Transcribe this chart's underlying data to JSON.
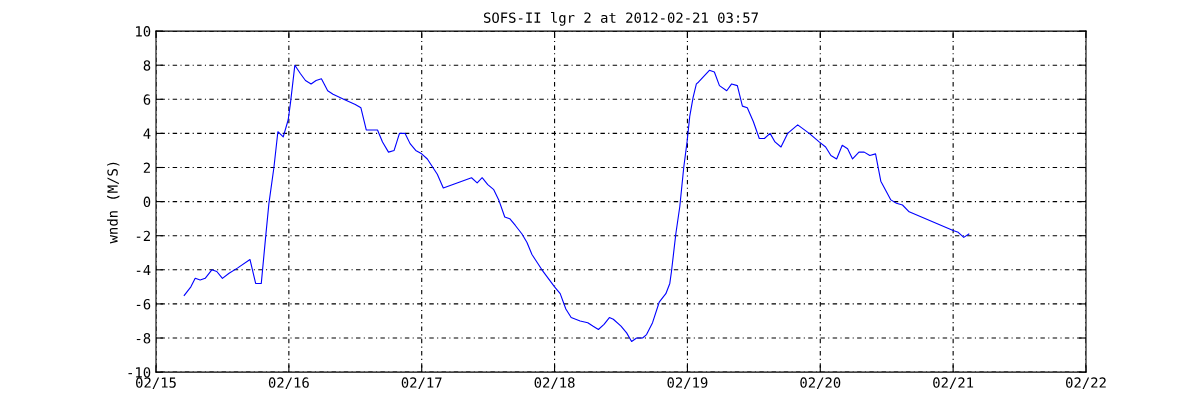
{
  "chart_data": {
    "type": "line",
    "title": "SOFS-II lgr 2 at 2012-02-21 03:57",
    "ylabel": "wndn (M/S)",
    "x": [
      "2012-02-15T05:06",
      "2012-02-15T06:18",
      "2012-02-15T07:05",
      "2012-02-15T07:59",
      "2012-02-15T08:53",
      "2012-02-15T10:05",
      "2012-02-15T10:59",
      "2012-02-15T12:00",
      "2012-02-15T13:12",
      "2012-02-15T14:42",
      "2012-02-15T16:59",
      "2012-02-15T18:00",
      "2012-02-15T19:01",
      "2012-02-15T19:48",
      "2012-02-15T20:24",
      "2012-02-15T21:18",
      "2012-02-15T22:01",
      "2012-02-15T22:59",
      "2012-02-15T23:53",
      "2012-02-16T00:18",
      "2012-02-16T01:05",
      "2012-02-16T02:06",
      "2012-02-16T03:00",
      "2012-02-16T04:01",
      "2012-02-16T04:55",
      "2012-02-16T05:53",
      "2012-02-16T07:01",
      "2012-02-16T07:59",
      "2012-02-16T09:54",
      "2012-02-16T12:00",
      "2012-02-16T13:01",
      "2012-02-16T13:59",
      "2012-02-16T16:01",
      "2012-02-16T16:55",
      "2012-02-16T18:00",
      "2012-02-16T19:01",
      "2012-02-16T19:59",
      "2012-02-16T21:00",
      "2012-02-16T21:54",
      "2012-02-16T22:55",
      "2012-02-17T00:00",
      "2012-02-17T01:01",
      "2012-02-17T02:49",
      "2012-02-17T03:54",
      "2012-02-17T09:00",
      "2012-02-17T10:01",
      "2012-02-17T10:55",
      "2012-02-17T11:56",
      "2012-02-17T13:01",
      "2012-02-17T13:55",
      "2012-02-17T15:00",
      "2012-02-17T15:54",
      "2012-02-17T16:55",
      "2012-02-17T18:07",
      "2012-02-17T19:01",
      "2012-02-17T19:55",
      "2012-02-17T21:43",
      "2012-02-18T00:00",
      "2012-02-18T01:01",
      "2012-02-18T02:02",
      "2012-02-18T03:00",
      "2012-02-18T04:37",
      "2012-02-18T06:00",
      "2012-02-18T06:54",
      "2012-02-18T07:55",
      "2012-02-18T08:56",
      "2012-02-18T09:54",
      "2012-02-18T10:37",
      "2012-02-18T12:00",
      "2012-02-18T13:01",
      "2012-02-18T13:55",
      "2012-02-18T14:49",
      "2012-02-18T15:54",
      "2012-02-18T16:37",
      "2012-02-18T17:42",
      "2012-02-18T18:54",
      "2012-02-18T20:06",
      "2012-02-18T20:49",
      "2012-02-18T21:07",
      "2012-02-18T21:54",
      "2012-02-18T22:37",
      "2012-02-18T23:20",
      "2012-02-18T23:56",
      "2012-02-19T00:25",
      "2012-02-19T01:01",
      "2012-02-19T01:37",
      "2012-02-19T01:59",
      "2012-02-19T03:58",
      "2012-02-19T04:52",
      "2012-02-19T05:47",
      "2012-02-19T07:06",
      "2012-02-19T07:59",
      "2012-02-19T09:01",
      "2012-02-19T09:56",
      "2012-02-19T10:49",
      "2012-02-19T11:54",
      "2012-02-19T12:59",
      "2012-02-19T13:54",
      "2012-02-19T14:56",
      "2012-02-19T15:49",
      "2012-02-19T16:54",
      "2012-02-19T18:06",
      "2012-02-19T19:55",
      "2012-02-19T22:00",
      "2012-02-19T23:48",
      "2012-02-20T00:58",
      "2012-02-20T01:55",
      "2012-02-20T02:57",
      "2012-02-20T03:58",
      "2012-02-20T04:56",
      "2012-02-20T05:50",
      "2012-02-20T06:59",
      "2012-02-20T07:56",
      "2012-02-20T08:57",
      "2012-02-20T09:59",
      "2012-02-20T10:56",
      "2012-02-20T12:45",
      "2012-02-20T13:46",
      "2012-02-20T14:51",
      "2012-02-20T16:03",
      "2012-02-21T00:00",
      "2012-02-21T00:55",
      "2012-02-21T01:55",
      "2012-02-21T02:50"
    ],
    "series": [
      {
        "color": "#0000ff",
        "values": [
          -5.5,
          -5.0,
          -4.5,
          -4.6,
          -4.5,
          -4.0,
          -4.1,
          -4.5,
          -4.2,
          -3.9,
          -3.4,
          -4.8,
          -4.8,
          -2.1,
          -0.1,
          2.0,
          4.1,
          3.8,
          4.8,
          5.8,
          8.0,
          7.5,
          7.1,
          6.9,
          7.1,
          7.2,
          6.5,
          6.3,
          6.0,
          5.7,
          5.5,
          4.2,
          4.2,
          3.5,
          2.9,
          3.0,
          4.0,
          4.0,
          3.4,
          3.0,
          2.8,
          2.5,
          1.6,
          0.8,
          1.4,
          1.1,
          1.4,
          1.0,
          0.7,
          0.1,
          -0.9,
          -1.0,
          -1.4,
          -1.9,
          -2.4,
          -3.1,
          -4.0,
          -5.0,
          -5.4,
          -6.3,
          -6.8,
          -7.0,
          -7.1,
          -7.3,
          -7.5,
          -7.2,
          -6.8,
          -6.9,
          -7.3,
          -7.7,
          -8.2,
          -8.0,
          -8.0,
          -7.8,
          -7.1,
          -5.9,
          -5.4,
          -4.8,
          -4.1,
          -1.9,
          -0.3,
          2.0,
          3.5,
          5.0,
          6.1,
          6.9,
          7.0,
          7.7,
          7.6,
          6.8,
          6.5,
          6.9,
          6.8,
          5.6,
          5.5,
          4.7,
          3.7,
          3.7,
          4.0,
          3.5,
          3.2,
          4.0,
          4.5,
          4.0,
          3.5,
          3.2,
          2.7,
          2.5,
          3.3,
          3.1,
          2.5,
          2.9,
          2.9,
          2.7,
          2.8,
          1.2,
          0.1,
          -0.1,
          -0.2,
          -0.6,
          -1.7,
          -1.8,
          -2.1,
          -1.9
        ]
      }
    ],
    "xlim": [
      "2012-02-15",
      "2012-02-22"
    ],
    "xticks": [
      {
        "value": "2012-02-15",
        "label": "02/15"
      },
      {
        "value": "2012-02-16",
        "label": "02/16"
      },
      {
        "value": "2012-02-17",
        "label": "02/17"
      },
      {
        "value": "2012-02-18",
        "label": "02/18"
      },
      {
        "value": "2012-02-19",
        "label": "02/19"
      },
      {
        "value": "2012-02-20",
        "label": "02/20"
      },
      {
        "value": "2012-02-21",
        "label": "02/21"
      },
      {
        "value": "2012-02-22",
        "label": "02/22"
      }
    ],
    "ylim": [
      -10,
      10
    ],
    "yticks": [
      -10,
      -8,
      -6,
      -4,
      -2,
      0,
      2,
      4,
      6,
      8,
      10
    ],
    "grid": true,
    "line_style": "solid"
  }
}
